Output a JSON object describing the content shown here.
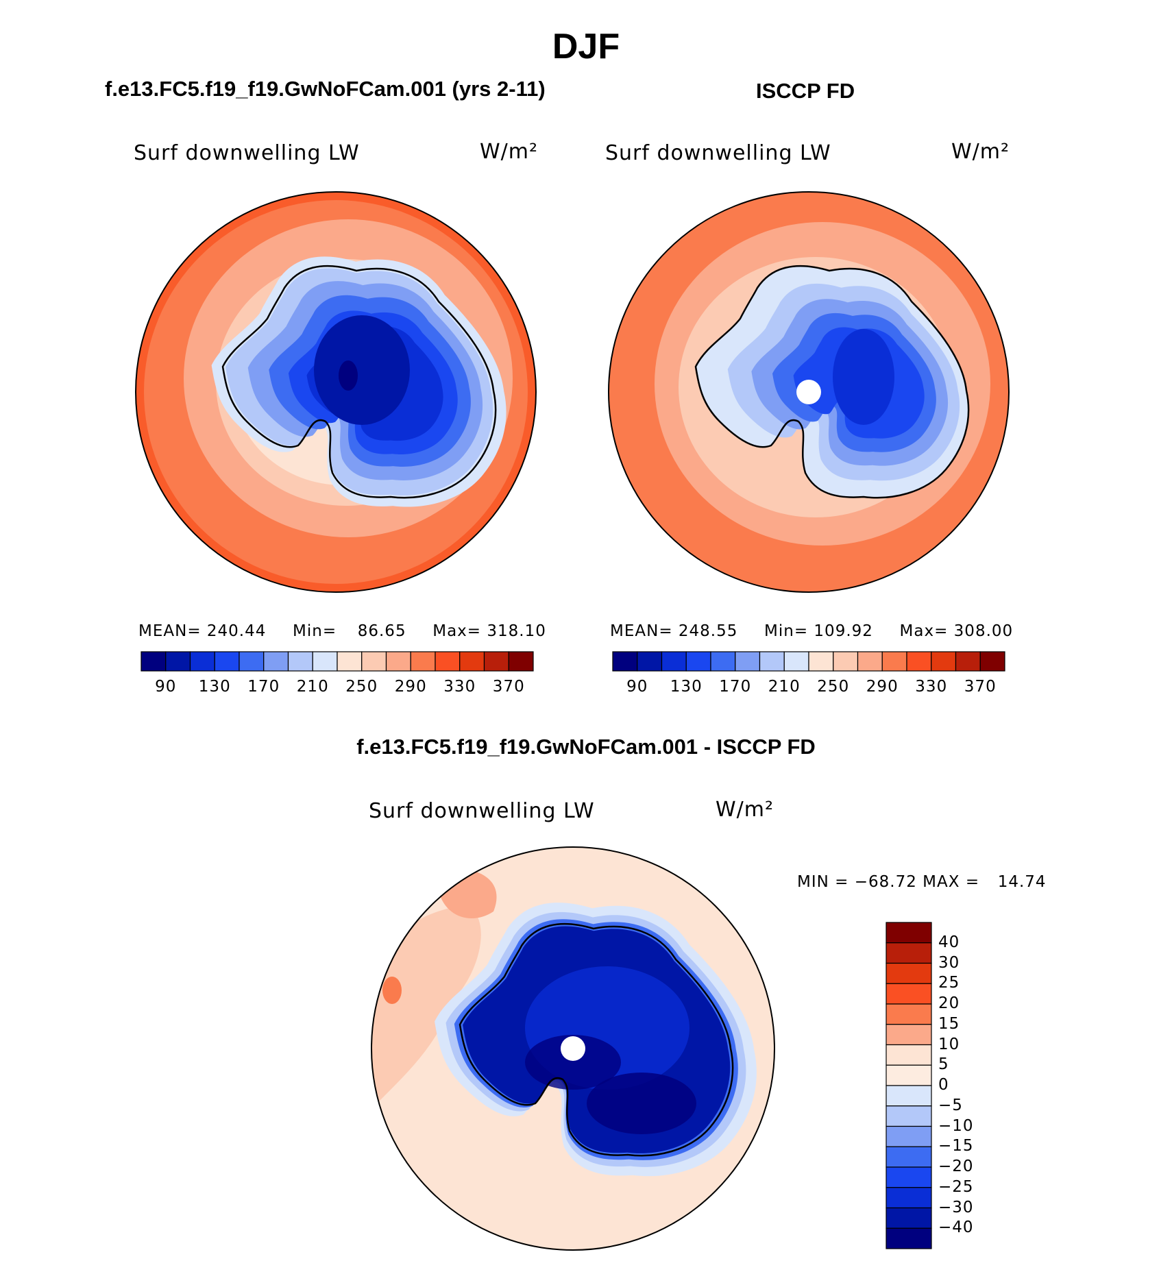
{
  "figure_title": "DJF",
  "panels": {
    "model": {
      "title": "f.e13.FC5.f19_f19.GwNoFCam.001 (yrs 2-11)",
      "variable": "Surf downwelling LW",
      "units": "W/m²",
      "stats": {
        "mean": "240.44",
        "min": "86.65",
        "max": "318.10"
      }
    },
    "obs": {
      "title": "ISCCP FD",
      "variable": "Surf downwelling LW",
      "units": "W/m²",
      "stats": {
        "mean": "248.55",
        "min": "109.92",
        "max": "308.00"
      }
    },
    "diff": {
      "title": "f.e13.FC5.f19_f19.GwNoFCam.001 - ISCCP FD",
      "variable": "Surf downwelling LW",
      "units": "W/m²",
      "stats": {
        "min": "−68.72",
        "max": "14.74"
      }
    }
  },
  "labels": {
    "mean": "MEAN=",
    "min": "Min=",
    "max": "Max=",
    "dmin": "MIN =",
    "dmax": "MAX ="
  },
  "chart_data": [
    {
      "type": "heatmap",
      "name": "model-map",
      "projection": "south-polar stereographic",
      "title": "f.e13.FC5.f19_f19.GwNoFCam.001 (yrs 2-11)",
      "colorbar": {
        "orientation": "horizontal",
        "tick_labels": [
          "90",
          "130",
          "170",
          "210",
          "250",
          "290",
          "330",
          "370"
        ],
        "colors": [
          "#00007f",
          "#0016a6",
          "#0a2ed6",
          "#1a47f0",
          "#3d6cf2",
          "#7f9ef4",
          "#b3c8f9",
          "#d9e6fb",
          "#fde4d4",
          "#fccbb3",
          "#fba98a",
          "#fa7b4d",
          "#fa5023",
          "#e33a0f",
          "#b81f0a",
          "#7f0000"
        ]
      }
    },
    {
      "type": "heatmap",
      "name": "obs-map",
      "projection": "south-polar stereographic",
      "title": "ISCCP FD",
      "colorbar": {
        "orientation": "horizontal",
        "tick_labels": [
          "90",
          "130",
          "170",
          "210",
          "250",
          "290",
          "330",
          "370"
        ],
        "colors": [
          "#00007f",
          "#0016a6",
          "#0a2ed6",
          "#1a47f0",
          "#3d6cf2",
          "#7f9ef4",
          "#b3c8f9",
          "#d9e6fb",
          "#fde4d4",
          "#fccbb3",
          "#fba98a",
          "#fa7b4d",
          "#fa5023",
          "#e33a0f",
          "#b81f0a",
          "#7f0000"
        ]
      }
    },
    {
      "type": "heatmap",
      "name": "diff-map",
      "projection": "south-polar stereographic",
      "title": "f.e13.FC5.f19_f19.GwNoFCam.001 - ISCCP FD",
      "colorbar": {
        "orientation": "vertical",
        "tick_labels": [
          "40",
          "30",
          "25",
          "20",
          "15",
          "10",
          "5",
          "0",
          "−5",
          "−10",
          "−15",
          "−20",
          "−25",
          "−30",
          "−40"
        ],
        "colors": [
          "#7f0000",
          "#b81f0a",
          "#e33a0f",
          "#fa5023",
          "#fa7b4d",
          "#fba98a",
          "#fde4d4",
          "#fdece0",
          "#d9e6fb",
          "#b3c8f9",
          "#7f9ef4",
          "#3d6cf2",
          "#1a47f0",
          "#0a2ed6",
          "#0016a6",
          "#00007f"
        ]
      }
    }
  ]
}
